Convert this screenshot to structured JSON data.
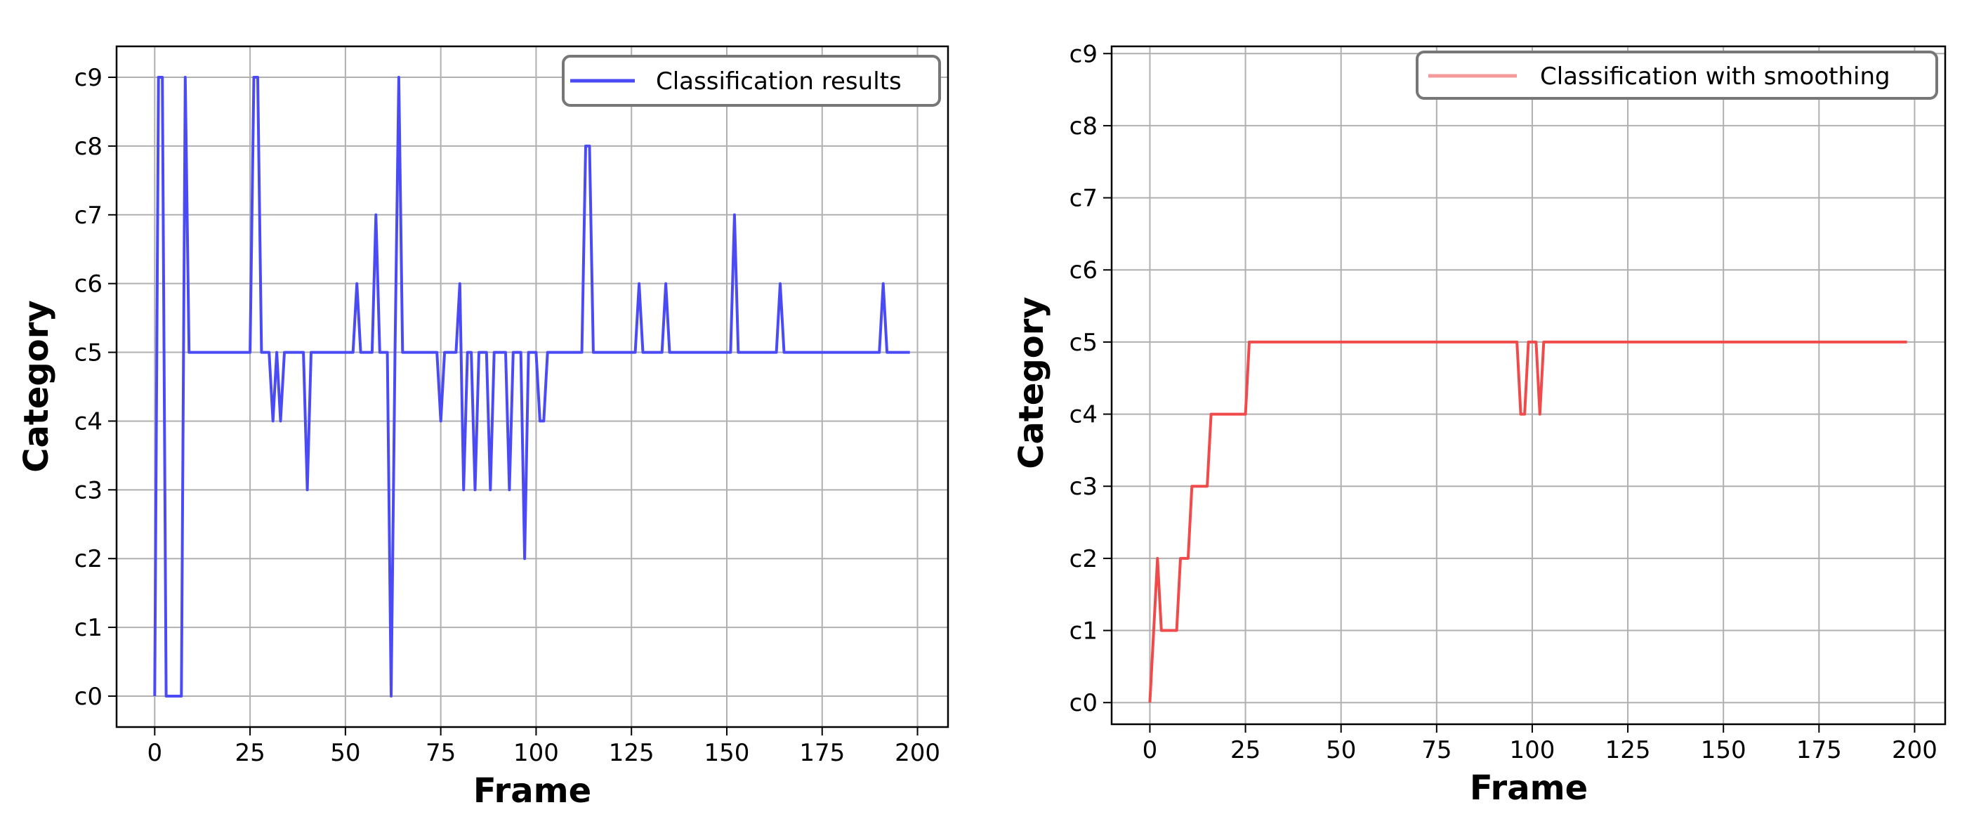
{
  "chart_data": [
    {
      "type": "line",
      "xlabel": "Frame",
      "ylabel": "Category",
      "xlim": [
        -10,
        208
      ],
      "ylim": [
        -0.45,
        9.45
      ],
      "xticks": [
        "0",
        "25",
        "50",
        "75",
        "100",
        "125",
        "150",
        "175",
        "200"
      ],
      "yticks": [
        "c0",
        "c1",
        "c2",
        "c3",
        "c4",
        "c5",
        "c6",
        "c7",
        "c8",
        "c9"
      ],
      "grid": true,
      "legend_position": "top-right",
      "series": [
        {
          "name": "Classification results",
          "color": "#4b4bf5",
          "x": [
            0,
            1,
            2,
            3,
            4,
            5,
            6,
            7,
            8,
            9,
            10,
            11,
            12,
            13,
            14,
            15,
            16,
            17,
            18,
            19,
            20,
            21,
            22,
            23,
            24,
            25,
            26,
            27,
            28,
            29,
            30,
            31,
            32,
            33,
            34,
            35,
            36,
            37,
            38,
            39,
            40,
            41,
            42,
            43,
            44,
            45,
            46,
            47,
            48,
            49,
            50,
            51,
            52,
            53,
            54,
            55,
            56,
            57,
            58,
            59,
            60,
            61,
            62,
            63,
            64,
            65,
            66,
            67,
            68,
            69,
            70,
            71,
            72,
            73,
            74,
            75,
            76,
            77,
            78,
            79,
            80,
            81,
            82,
            83,
            84,
            85,
            86,
            87,
            88,
            89,
            90,
            91,
            92,
            93,
            94,
            95,
            96,
            97,
            98,
            99,
            100,
            101,
            102,
            103,
            104,
            105,
            106,
            107,
            108,
            109,
            110,
            111,
            112,
            113,
            114,
            115,
            116,
            117,
            118,
            119,
            120,
            121,
            122,
            123,
            124,
            125,
            126,
            127,
            128,
            129,
            130,
            131,
            132,
            133,
            134,
            135,
            136,
            137,
            138,
            139,
            140,
            141,
            142,
            143,
            144,
            145,
            146,
            147,
            148,
            149,
            150,
            151,
            152,
            153,
            154,
            155,
            156,
            157,
            158,
            159,
            160,
            161,
            162,
            163,
            164,
            165,
            166,
            167,
            168,
            169,
            170,
            171,
            172,
            173,
            174,
            175,
            176,
            177,
            178,
            179,
            180,
            181,
            182,
            183,
            184,
            185,
            186,
            187,
            188,
            189,
            190,
            191,
            192,
            193,
            194,
            195,
            196,
            197,
            198
          ],
          "values": [
            0,
            9,
            9,
            0,
            0,
            0,
            0,
            0,
            9,
            5,
            5,
            5,
            5,
            5,
            5,
            5,
            5,
            5,
            5,
            5,
            5,
            5,
            5,
            5,
            5,
            5,
            9,
            9,
            5,
            5,
            5,
            4,
            5,
            4,
            5,
            5,
            5,
            5,
            5,
            5,
            3,
            5,
            5,
            5,
            5,
            5,
            5,
            5,
            5,
            5,
            5,
            5,
            5,
            6,
            5,
            5,
            5,
            5,
            7,
            5,
            5,
            5,
            0,
            5,
            9,
            5,
            5,
            5,
            5,
            5,
            5,
            5,
            5,
            5,
            5,
            4,
            5,
            5,
            5,
            5,
            6,
            3,
            5,
            5,
            3,
            5,
            5,
            5,
            3,
            5,
            5,
            5,
            5,
            3,
            5,
            5,
            5,
            2,
            5,
            5,
            5,
            4,
            4,
            5,
            5,
            5,
            5,
            5,
            5,
            5,
            5,
            5,
            5,
            8,
            8,
            5,
            5,
            5,
            5,
            5,
            5,
            5,
            5,
            5,
            5,
            5,
            5,
            6,
            5,
            5,
            5,
            5,
            5,
            5,
            6,
            5,
            5,
            5,
            5,
            5,
            5,
            5,
            5,
            5,
            5,
            5,
            5,
            5,
            5,
            5,
            5,
            5,
            7,
            5,
            5,
            5,
            5,
            5,
            5,
            5,
            5,
            5,
            5,
            5,
            6,
            5,
            5,
            5,
            5,
            5,
            5,
            5,
            5,
            5,
            5,
            5,
            5,
            5,
            5,
            5,
            5,
            5,
            5,
            5,
            5,
            5,
            5,
            5,
            5,
            5,
            5,
            6,
            5,
            5,
            5,
            5,
            5,
            5,
            5
          ]
        }
      ]
    },
    {
      "type": "line",
      "xlabel": "Frame",
      "ylabel": "Category",
      "xlim": [
        -10,
        208
      ],
      "ylim": [
        -0.3,
        9.1
      ],
      "xticks": [
        "0",
        "25",
        "50",
        "75",
        "100",
        "125",
        "150",
        "175",
        "200"
      ],
      "yticks": [
        "c0",
        "c1",
        "c2",
        "c3",
        "c4",
        "c5",
        "c6",
        "c7",
        "c8",
        "c9"
      ],
      "grid": true,
      "legend_position": "top-right",
      "series": [
        {
          "name": "Classification with smoothing",
          "color": "#f04a4a",
          "x": [
            0,
            1,
            2,
            3,
            4,
            5,
            6,
            7,
            8,
            9,
            10,
            11,
            12,
            13,
            14,
            15,
            16,
            17,
            18,
            19,
            20,
            21,
            22,
            23,
            24,
            25,
            26,
            27,
            28,
            29,
            30,
            31,
            32,
            33,
            34,
            35,
            36,
            37,
            38,
            39,
            40,
            41,
            42,
            43,
            44,
            45,
            46,
            47,
            48,
            49,
            50,
            51,
            52,
            53,
            54,
            55,
            56,
            57,
            58,
            59,
            60,
            61,
            62,
            63,
            64,
            65,
            66,
            67,
            68,
            69,
            70,
            71,
            72,
            73,
            74,
            75,
            76,
            77,
            78,
            79,
            80,
            81,
            82,
            83,
            84,
            85,
            86,
            87,
            88,
            89,
            90,
            91,
            92,
            93,
            94,
            95,
            96,
            97,
            98,
            99,
            100,
            101,
            102,
            103,
            104,
            105,
            106,
            107,
            108,
            109,
            110,
            111,
            112,
            113,
            114,
            115,
            116,
            117,
            118,
            119,
            120,
            121,
            122,
            123,
            124,
            125,
            126,
            127,
            128,
            129,
            130,
            131,
            132,
            133,
            134,
            135,
            136,
            137,
            138,
            139,
            140,
            141,
            142,
            143,
            144,
            145,
            146,
            147,
            148,
            149,
            150,
            151,
            152,
            153,
            154,
            155,
            156,
            157,
            158,
            159,
            160,
            161,
            162,
            163,
            164,
            165,
            166,
            167,
            168,
            169,
            170,
            171,
            172,
            173,
            174,
            175,
            176,
            177,
            178,
            179,
            180,
            181,
            182,
            183,
            184,
            185,
            186,
            187,
            188,
            189,
            190,
            191,
            192,
            193,
            194,
            195,
            196,
            197,
            198
          ],
          "values": [
            0,
            1,
            2,
            1,
            1,
            1,
            1,
            1,
            2,
            2,
            2,
            3,
            3,
            3,
            3,
            3,
            4,
            4,
            4,
            4,
            4,
            4,
            4,
            4,
            4,
            4,
            5,
            5,
            5,
            5,
            5,
            5,
            5,
            5,
            5,
            5,
            5,
            5,
            5,
            5,
            5,
            5,
            5,
            5,
            5,
            5,
            5,
            5,
            5,
            5,
            5,
            5,
            5,
            5,
            5,
            5,
            5,
            5,
            5,
            5,
            5,
            5,
            5,
            5,
            5,
            5,
            5,
            5,
            5,
            5,
            5,
            5,
            5,
            5,
            5,
            5,
            5,
            5,
            5,
            5,
            5,
            5,
            5,
            5,
            5,
            5,
            5,
            5,
            5,
            5,
            5,
            5,
            5,
            5,
            5,
            5,
            5,
            4,
            4,
            5,
            5,
            5,
            4,
            5,
            5,
            5,
            5,
            5,
            5,
            5,
            5,
            5,
            5,
            5,
            5,
            5,
            5,
            5,
            5,
            5,
            5,
            5,
            5,
            5,
            5,
            5,
            5,
            5,
            5,
            5,
            5,
            5,
            5,
            5,
            5,
            5,
            5,
            5,
            5,
            5,
            5,
            5,
            5,
            5,
            5,
            5,
            5,
            5,
            5,
            5,
            5,
            5,
            5,
            5,
            5,
            5,
            5,
            5,
            5,
            5,
            5,
            5,
            5,
            5,
            5,
            5,
            5,
            5,
            5,
            5,
            5,
            5,
            5,
            5,
            5,
            5,
            5,
            5,
            5,
            5,
            5,
            5,
            5,
            5,
            5,
            5,
            5,
            5,
            5,
            5,
            5,
            5,
            5,
            5,
            5,
            5,
            5,
            5,
            5
          ]
        }
      ]
    }
  ]
}
